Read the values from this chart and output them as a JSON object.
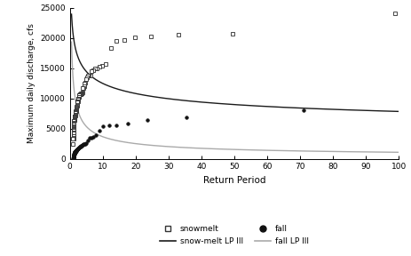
{
  "title": "",
  "xlabel": "Return Period",
  "ylabel": "Maximum daily discharge, cfs",
  "xlim": [
    0,
    100
  ],
  "ylim": [
    0,
    25000
  ],
  "yticks": [
    0,
    5000,
    10000,
    15000,
    20000,
    25000
  ],
  "xticks": [
    0,
    10,
    20,
    30,
    40,
    50,
    60,
    70,
    80,
    90,
    100
  ],
  "snowmelt_color": "#2a2a2a",
  "fall_color": "#111111",
  "lp3_snowmelt_color": "#1a1a1a",
  "lp3_fall_color": "#aaaaaa",
  "bg_color": "#ffffff",
  "n_snow": 98,
  "n_fall": 70,
  "snow_seed": 42,
  "fall_seed": 7
}
